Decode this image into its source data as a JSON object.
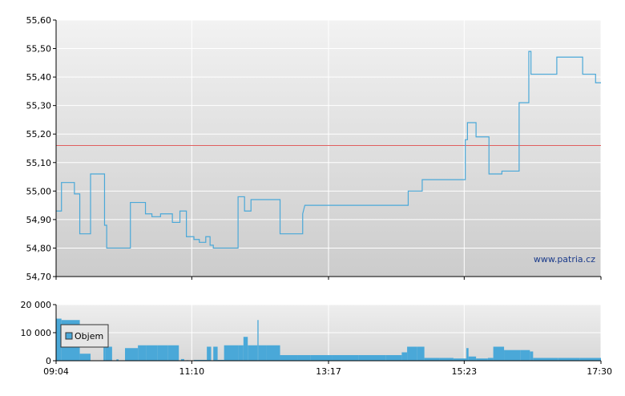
{
  "chart_data": [
    {
      "type": "line",
      "title": "",
      "xlabel": "",
      "ylabel": "",
      "ylim": [
        54.7,
        55.6
      ],
      "yticks": [
        "54,70",
        "54,80",
        "54,90",
        "55,00",
        "55,10",
        "55,20",
        "55,30",
        "55,40",
        "55,50",
        "55,60"
      ],
      "xtick_positions": [
        "09:04",
        "11:10",
        "13:17",
        "15:23",
        "17:30"
      ],
      "reference_line": 55.16,
      "watermark": "www.patria.cz",
      "grid": true,
      "colors": {
        "line": "#4aa8d8",
        "reference": "#e06060",
        "grid": "#ffffff",
        "background_top": "#f2f2f2",
        "background_bottom": "#cccccc"
      },
      "series": [
        {
          "name": "",
          "points": [
            [
              "09:04",
              54.93
            ],
            [
              "09:09",
              54.93
            ],
            [
              "09:09",
              55.03
            ],
            [
              "09:21",
              55.03
            ],
            [
              "09:21",
              54.99
            ],
            [
              "09:26",
              54.99
            ],
            [
              "09:26",
              54.85
            ],
            [
              "09:36",
              54.85
            ],
            [
              "09:36",
              55.06
            ],
            [
              "09:49",
              55.06
            ],
            [
              "09:49",
              54.88
            ],
            [
              "09:51",
              54.88
            ],
            [
              "09:51",
              54.8
            ],
            [
              "10:13",
              54.8
            ],
            [
              "10:13",
              54.96
            ],
            [
              "10:27",
              54.96
            ],
            [
              "10:27",
              54.92
            ],
            [
              "10:33",
              54.92
            ],
            [
              "10:33",
              54.91
            ],
            [
              "10:41",
              54.91
            ],
            [
              "10:41",
              54.92
            ],
            [
              "10:52",
              54.92
            ],
            [
              "10:52",
              54.89
            ],
            [
              "10:59",
              54.89
            ],
            [
              "10:59",
              54.93
            ],
            [
              "11:05",
              54.93
            ],
            [
              "11:05",
              54.84
            ],
            [
              "11:12",
              54.84
            ],
            [
              "11:12",
              54.83
            ],
            [
              "11:17",
              54.83
            ],
            [
              "11:17",
              54.82
            ],
            [
              "11:23",
              54.82
            ],
            [
              "11:23",
              54.84
            ],
            [
              "11:27",
              54.84
            ],
            [
              "11:27",
              54.81
            ],
            [
              "11:30",
              54.81
            ],
            [
              "11:30",
              54.8
            ],
            [
              "11:53",
              54.8
            ],
            [
              "11:53",
              54.98
            ],
            [
              "11:59",
              54.98
            ],
            [
              "11:59",
              54.93
            ],
            [
              "12:05",
              54.93
            ],
            [
              "12:05",
              54.97
            ],
            [
              "12:32",
              54.97
            ],
            [
              "12:32",
              54.85
            ],
            [
              "12:53",
              54.85
            ],
            [
              "12:53",
              54.92
            ],
            [
              "12:55",
              54.95
            ],
            [
              "14:31",
              54.95
            ],
            [
              "14:31",
              55.0
            ],
            [
              "14:44",
              55.0
            ],
            [
              "14:44",
              55.04
            ],
            [
              "15:24",
              55.04
            ],
            [
              "15:24",
              55.18
            ],
            [
              "15:26",
              55.18
            ],
            [
              "15:26",
              55.24
            ],
            [
              "15:34",
              55.24
            ],
            [
              "15:34",
              55.19
            ],
            [
              "15:46",
              55.19
            ],
            [
              "15:46",
              55.06
            ],
            [
              "15:58",
              55.06
            ],
            [
              "15:58",
              55.07
            ],
            [
              "16:14",
              55.07
            ],
            [
              "16:14",
              55.31
            ],
            [
              "16:23",
              55.31
            ],
            [
              "16:23",
              55.49
            ],
            [
              "16:25",
              55.49
            ],
            [
              "16:25",
              55.41
            ],
            [
              "16:49",
              55.41
            ],
            [
              "16:49",
              55.47
            ],
            [
              "17:13",
              55.47
            ],
            [
              "17:13",
              55.41
            ],
            [
              "17:25",
              55.41
            ],
            [
              "17:25",
              55.38
            ],
            [
              "17:30",
              55.38
            ]
          ]
        }
      ]
    },
    {
      "type": "bar",
      "title": "",
      "xlabel": "",
      "ylabel": "",
      "ylim": [
        0,
        20000
      ],
      "yticks": [
        "0",
        "10 000",
        "20 000"
      ],
      "xtick_labels": [
        "09:04",
        "11:10",
        "13:17",
        "15:23",
        "17:30"
      ],
      "legend": {
        "label": "Objem",
        "placement": "top-left"
      },
      "colors": {
        "bar": "#4aa8d8"
      },
      "series": [
        {
          "name": "Objem",
          "bars": [
            [
              "09:04",
              "09:09",
              15000
            ],
            [
              "09:09",
              "09:26",
              14500
            ],
            [
              "09:26",
              "09:36",
              2500
            ],
            [
              "09:48",
              "09:50",
              5000
            ],
            [
              "09:50",
              "09:52",
              5000
            ],
            [
              "09:52",
              "09:56",
              5000
            ],
            [
              "10:00",
              "10:02",
              500
            ],
            [
              "10:08",
              "10:20",
              4500
            ],
            [
              "10:20",
              "10:28",
              5500
            ],
            [
              "10:28",
              "10:38",
              5500
            ],
            [
              "10:38",
              "10:48",
              5500
            ],
            [
              "10:48",
              "10:58",
              5500
            ],
            [
              "11:00",
              "11:03",
              600
            ],
            [
              "11:05",
              "11:07",
              200
            ],
            [
              "11:12",
              "11:24",
              300
            ],
            [
              "11:24",
              "11:28",
              5000
            ],
            [
              "11:30",
              "11:34",
              5000
            ],
            [
              "11:34",
              "11:40",
              300
            ],
            [
              "11:40",
              "11:53",
              5500
            ],
            [
              "11:53",
              "11:58",
              5500
            ],
            [
              "11:58",
              "12:02",
              8500
            ],
            [
              "12:02",
              "12:11",
              5500
            ],
            [
              "12:11",
              "12:12",
              14500
            ],
            [
              "12:12",
              "12:19",
              5500
            ],
            [
              "12:19",
              "12:32",
              5500
            ],
            [
              "12:32",
              "12:48",
              2000
            ],
            [
              "12:48",
              "13:00",
              2000
            ],
            [
              "13:00",
              "13:20",
              2000
            ],
            [
              "13:20",
              "13:45",
              2000
            ],
            [
              "13:45",
              "14:10",
              2000
            ],
            [
              "14:10",
              "14:25",
              2000
            ],
            [
              "14:25",
              "14:30",
              3000
            ],
            [
              "14:30",
              "14:39",
              5000
            ],
            [
              "14:39",
              "14:46",
              5000
            ],
            [
              "14:46",
              "15:00",
              1000
            ],
            [
              "15:00",
              "15:13",
              1000
            ],
            [
              "15:13",
              "15:25",
              800
            ],
            [
              "15:25",
              "15:27",
              4500
            ],
            [
              "15:27",
              "15:34",
              1500
            ],
            [
              "15:34",
              "15:45",
              800
            ],
            [
              "15:45",
              "15:50",
              1000
            ],
            [
              "15:50",
              "16:00",
              5000
            ],
            [
              "16:00",
              "16:15",
              3800
            ],
            [
              "16:15",
              "16:24",
              3800
            ],
            [
              "16:24",
              "16:27",
              3300
            ],
            [
              "16:27",
              "16:50",
              1000
            ],
            [
              "16:50",
              "17:10",
              1000
            ],
            [
              "17:10",
              "17:30",
              1000
            ]
          ]
        }
      ]
    }
  ]
}
